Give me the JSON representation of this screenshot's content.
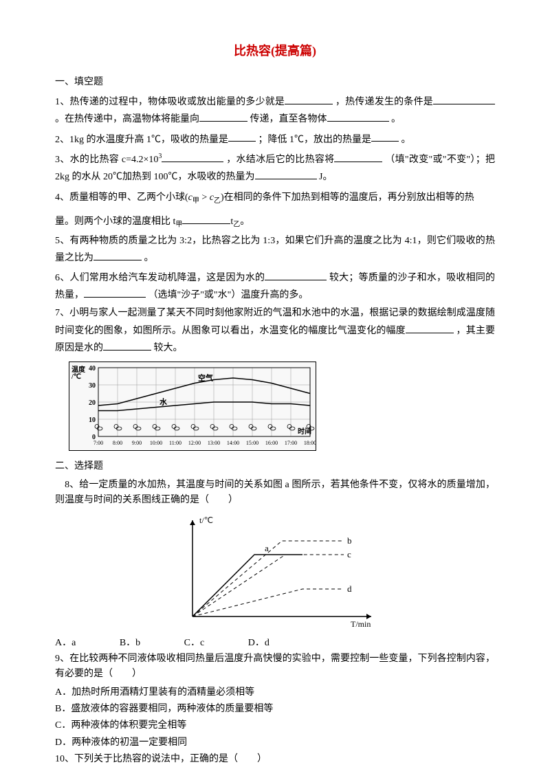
{
  "title": "比热容(提高篇)",
  "section1": {
    "header": "一、填空题",
    "q1": "1、热传递的过程中，物体吸收或放出能量的多少就是",
    "q1b": "，热传递发生的条件是",
    "q1c": "。在热传递中，高温物体将能量向",
    "q1d": "传递，直至各物体",
    "q1e": "。",
    "q2": "2、1kg 的水温度升高 1℃，吸收的热量是",
    "q2b": "；降低 1℃，放出的热量是",
    "q2c": "。",
    "q3a": "3、水的比热容 c=4.2×10",
    "q3sup": "3",
    "q3b": "，水结冰后它的比热容将",
    "q3c": "（填\"改变\"或\"不变\"）；把 2kg 的水从 20℃加热到 100℃，水吸收的热量为",
    "q3d": "J。",
    "q4a": "4、质量相等的甲、乙两个小球(",
    "q4f1": "c",
    "q4s1": "甲",
    "q4gt": " > ",
    "q4f2": "c",
    "q4s2": "乙",
    "q4b": ")在相同的条件下加热到相等的温度后，再分别放出相等的热",
    "q4c": "量。则两个小球的温度相比 t",
    "q4s3": "甲",
    "q4d": "t",
    "q4s4": "乙",
    "q4e": "。",
    "q5a": "5、有两种物质的质量之比为 3:2，比热容之比为 1:3，如果它们升高的温度之比为 4:1，则它们吸收的热量之比为",
    "q5b": "。",
    "q6a": "6、人们常用水给汽车发动机降温，这是因为水的",
    "q6b": "较大；等质量的沙子和水，吸收相同的热量，",
    "q6c": "（选填\"沙子\"或\"水\"）温度升高的多。",
    "q7a": "7、小明与家人一起测量了某天不同时刻他家附近的气温和水池中的水温，根据记录的数据绘制成温度随时间变化的图象，如图所示。从图象可以看出，水温变化的幅度比气温变化的幅度",
    "q7b": "，其主要原因是水的",
    "q7c": "较大。"
  },
  "chart1": {
    "ylabel": "温度/℃",
    "xlabel": "时间",
    "yticks": [
      "0",
      "10",
      "20",
      "30",
      "40"
    ],
    "xticks": [
      "7:00",
      "8:00",
      "9:00",
      "10:00",
      "11:00",
      "12:00",
      "13:00",
      "14:00",
      "15:00",
      "16:00",
      "17:00",
      "18:00"
    ],
    "series": [
      {
        "label": "空气",
        "values": [
          18,
          19,
          22,
          25,
          28,
          31,
          33,
          34,
          33,
          31,
          28,
          25
        ],
        "color": "#000000"
      },
      {
        "label": "水",
        "values": [
          15,
          15,
          16,
          17,
          18,
          19,
          20,
          20,
          20,
          19,
          19,
          18
        ],
        "color": "#000000"
      }
    ],
    "ylim": [
      0,
      40
    ],
    "grid_color": "#999999",
    "background": "#f8f8f8"
  },
  "section2": {
    "header": "二、选择题",
    "q8a": "　8、给一定质量的水加热，其温度与时间的关系如图 a 图所示，若其他条件不变，仅将水的质量增加，则温度与时间的关系图线正确的是（　　）",
    "q8opts": {
      "A": "A．a",
      "B": "B．b",
      "C": "C．c",
      "D": "D．d"
    },
    "q9a": "9、在比较两种不同液体吸收相同热量后温度升高快慢的实验中，需要控制一些变量，下列各控制内容，有必要的是（　　）",
    "q9A": "A．加热时所用酒精灯里装有的酒精量必须相等",
    "q9B": "B．盛放液体的容器要相同，两种液体的质量要相等",
    "q9C": "C．两种液体的体积要完全相等",
    "q9D": "D．两种液体的初温一定要相同",
    "q10": "10、下列关于比热容的说法中，正确的是（　　）"
  },
  "chart2": {
    "ylabel": "t/℃",
    "xlabel": "T/min",
    "lines": [
      "a",
      "b",
      "c",
      "d"
    ],
    "line_color": "#000000",
    "solid_line": "a"
  }
}
